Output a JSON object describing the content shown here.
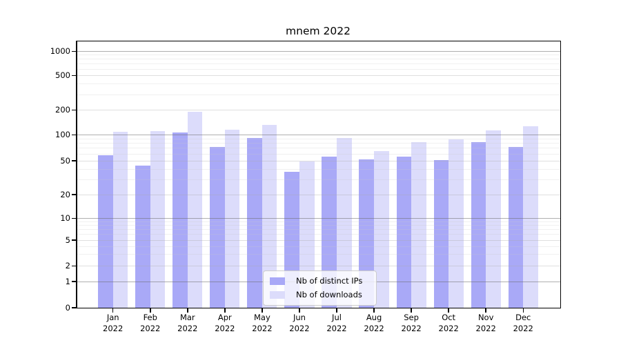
{
  "title": "mnem 2022",
  "legend": {
    "items": [
      {
        "label": "Nb of distinct IPs",
        "color": "#a9a9f7"
      },
      {
        "label": "Nb of downloads",
        "color": "#dcdcfb"
      }
    ]
  },
  "chart_data": {
    "type": "bar",
    "title": "mnem 2022",
    "categories": [
      "Jan",
      "Feb",
      "Mar",
      "Apr",
      "May",
      "Jun",
      "Jul",
      "Aug",
      "Sep",
      "Oct",
      "Nov",
      "Dec"
    ],
    "category_year": "2022",
    "series": [
      {
        "name": "Nb of distinct IPs",
        "color": "#a9a9f7",
        "values": [
          58,
          44,
          107,
          72,
          92,
          37,
          56,
          52,
          56,
          51,
          82,
          72
        ]
      },
      {
        "name": "Nb of downloads",
        "color": "#dcdcfb",
        "values": [
          108,
          110,
          191,
          114,
          131,
          49,
          91,
          64,
          81,
          88,
          112,
          126
        ]
      }
    ],
    "yscale": "symlog",
    "yticks": [
      0,
      1,
      2,
      5,
      10,
      20,
      50,
      100,
      200,
      500,
      1000
    ],
    "ylim": [
      0,
      1350
    ],
    "grid": true,
    "legend_position": "lower center"
  }
}
